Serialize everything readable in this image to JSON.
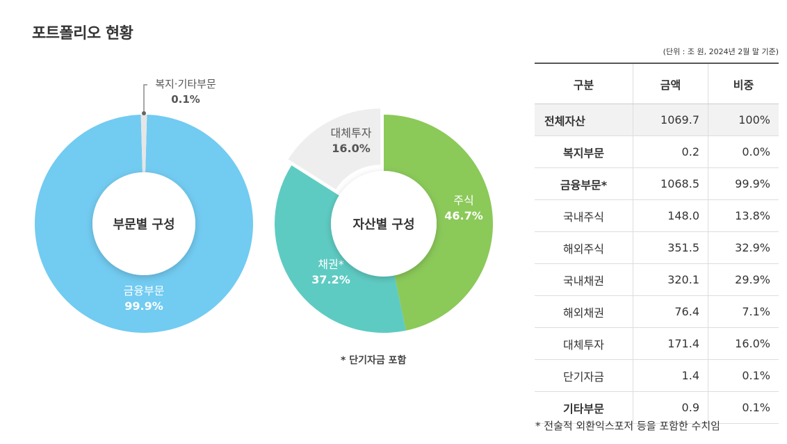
{
  "page_title": "포트폴리오 현황",
  "chart_data": [
    {
      "type": "pie",
      "title": "부문별 구성",
      "slices": [
        {
          "label": "금융부문",
          "value": 99.9,
          "value_label": "99.9%",
          "color": "#72CBF1"
        },
        {
          "label": "복지·기타부문",
          "value": 0.1,
          "value_label": "0.1%",
          "color": "#E6E6E6"
        }
      ]
    },
    {
      "type": "pie",
      "title": "자산별 구성",
      "slices": [
        {
          "label": "주식",
          "value": 46.7,
          "value_label": "46.7%",
          "color": "#8BC959"
        },
        {
          "label": "채권*",
          "value": 37.2,
          "value_label": "37.2%",
          "color": "#5ECBC2"
        },
        {
          "label": "대체투자",
          "value": 16.0,
          "value_label": "16.0%",
          "color": "#EEEEEE"
        }
      ]
    }
  ],
  "chart_note": "* 단기자금 포함",
  "table": {
    "unit_note": "(단위 : 조 원, 2024년 2월 말 기준)",
    "headers": [
      "구분",
      "금액",
      "비중"
    ],
    "rows": [
      {
        "name": "전체자산",
        "amount": "1069.7",
        "share": "100%"
      },
      {
        "name": "복지부문",
        "amount": "0.2",
        "share": "0.0%"
      },
      {
        "name": "금융부문*",
        "amount": "1068.5",
        "share": "99.9%"
      },
      {
        "name": "국내주식",
        "amount": "148.0",
        "share": "13.8%"
      },
      {
        "name": "해외주식",
        "amount": "351.5",
        "share": "32.9%"
      },
      {
        "name": "국내채권",
        "amount": "320.1",
        "share": "29.9%"
      },
      {
        "name": "해외채권",
        "amount": "76.4",
        "share": "7.1%"
      },
      {
        "name": "대체투자",
        "amount": "171.4",
        "share": "16.0%"
      },
      {
        "name": "단기자금",
        "amount": "1.4",
        "share": "0.1%"
      },
      {
        "name": "기타부문",
        "amount": "0.9",
        "share": "0.1%"
      }
    ]
  },
  "footnote": "* 전술적 외환익스포저 등을 포함한 수치임"
}
